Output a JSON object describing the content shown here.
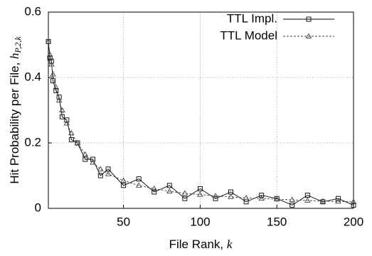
{
  "chart_data": {
    "type": "line",
    "x_label": "File Rank, ",
    "x_label_var": "k",
    "y_label": "Hit Probability per File, ",
    "y_label_var": "h",
    "y_label_sub": "P,2,k",
    "x": [
      1,
      2,
      3,
      4,
      6,
      8,
      10,
      13,
      16,
      20,
      25,
      30,
      35,
      40,
      50,
      60,
      70,
      80,
      90,
      100,
      110,
      120,
      130,
      140,
      150,
      160,
      170,
      180,
      190,
      200
    ],
    "series": [
      {
        "name": "TTL Impl.",
        "color": "#000000",
        "marker": "square",
        "dash": false,
        "values": [
          0.51,
          0.46,
          0.45,
          0.39,
          0.36,
          0.34,
          0.28,
          0.27,
          0.21,
          0.2,
          0.15,
          0.15,
          0.1,
          0.12,
          0.07,
          0.09,
          0.05,
          0.07,
          0.03,
          0.06,
          0.03,
          0.05,
          0.02,
          0.04,
          0.03,
          0.01,
          0.04,
          0.02,
          0.03,
          0.01
        ]
      },
      {
        "name": "TTL Model",
        "color": "#444444",
        "marker": "triangle",
        "dash": true,
        "values": [
          0.51,
          0.47,
          0.44,
          0.41,
          0.37,
          0.33,
          0.3,
          0.26,
          0.23,
          0.2,
          0.165,
          0.14,
          0.12,
          0.105,
          0.085,
          0.07,
          0.06,
          0.052,
          0.046,
          0.042,
          0.038,
          0.035,
          0.032,
          0.03,
          0.028,
          0.026,
          0.024,
          0.022,
          0.021,
          0.02
        ]
      }
    ],
    "xlim": [
      1,
      200
    ],
    "xticks": [
      50,
      100,
      150,
      200
    ],
    "ylim": [
      0,
      0.6
    ],
    "yticks": [
      0,
      0.2,
      0.4,
      0.6
    ],
    "grid": true,
    "legend": "top-right"
  }
}
